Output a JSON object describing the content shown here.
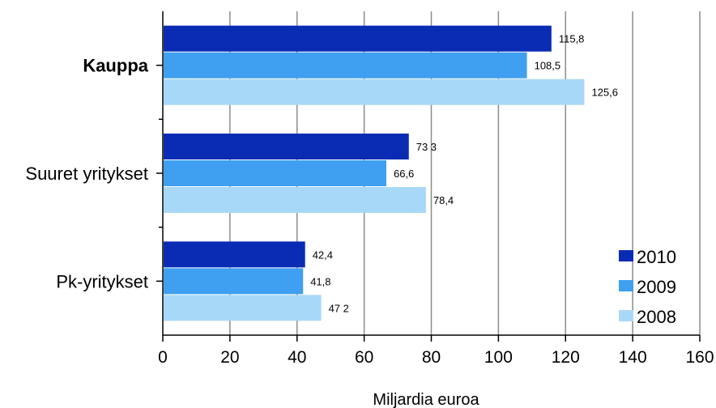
{
  "chart_data": {
    "type": "bar",
    "orientation": "horizontal",
    "categories": [
      "Kauppa",
      "Suuret yritykset",
      "Pk-yritykset"
    ],
    "category_bold": [
      true,
      false,
      false
    ],
    "series": [
      {
        "name": "2010",
        "color": "#0a2cb4",
        "values": [
          115.8,
          73.3,
          42.4
        ],
        "labels": [
          "115,8",
          "73 3",
          "42,4"
        ]
      },
      {
        "name": "2009",
        "color": "#3f9ff0",
        "values": [
          108.5,
          66.6,
          41.8
        ],
        "labels": [
          "108,5",
          "66,6",
          "41,8"
        ]
      },
      {
        "name": "2008",
        "color": "#a8d8f8",
        "values": [
          125.6,
          78.4,
          47.2
        ],
        "labels": [
          "125,6",
          "78,4",
          "47 2"
        ]
      }
    ],
    "xlabel": "Miljardia euroa",
    "xlim": [
      0,
      160
    ],
    "xticks": [
      "0",
      "20",
      "40",
      "60",
      "80",
      "100",
      "120",
      "140",
      "160"
    ],
    "grid": true,
    "legend_position": "bottom-right"
  }
}
